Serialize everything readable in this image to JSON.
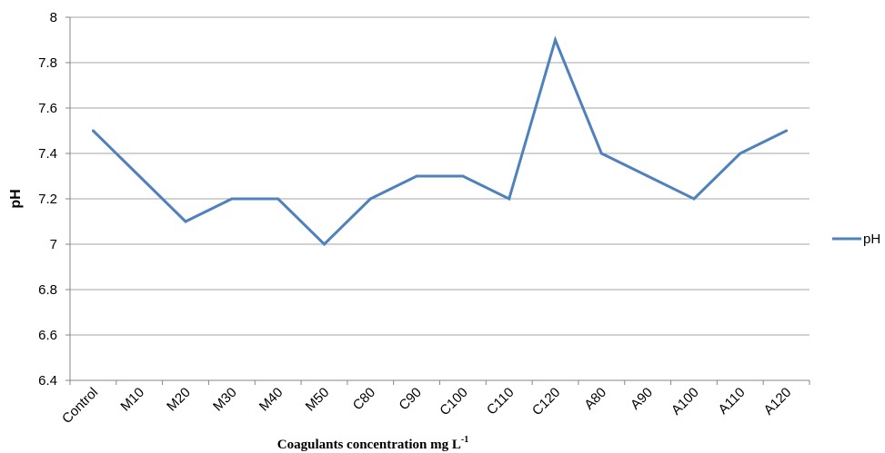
{
  "chart_data": {
    "type": "line",
    "categories": [
      "Control",
      "M10",
      "M20",
      "M30",
      "M40",
      "M50",
      "C80",
      "C90",
      "C100",
      "C110",
      "C120",
      "A80",
      "A90",
      "A100",
      "A110",
      "A120"
    ],
    "series": [
      {
        "name": "pH",
        "values": [
          7.5,
          7.3,
          7.1,
          7.2,
          7.2,
          7.0,
          7.2,
          7.3,
          7.3,
          7.2,
          7.9,
          7.4,
          7.3,
          7.2,
          7.4,
          7.5
        ]
      }
    ],
    "ylabel": "pH",
    "xlabel": {
      "text": "Coagulants concentration  mg L",
      "superscript": "-1"
    },
    "ylim": [
      6.4,
      8
    ],
    "yticks": [
      "6.4",
      "6.6",
      "6.8",
      "7",
      "7.2",
      "7.4",
      "7.6",
      "7.8",
      "8"
    ],
    "grid": true,
    "legend_position": "right",
    "colors": {
      "series": "#4F81BD",
      "grid": "#A6A6A6",
      "axis": "#868686"
    }
  }
}
